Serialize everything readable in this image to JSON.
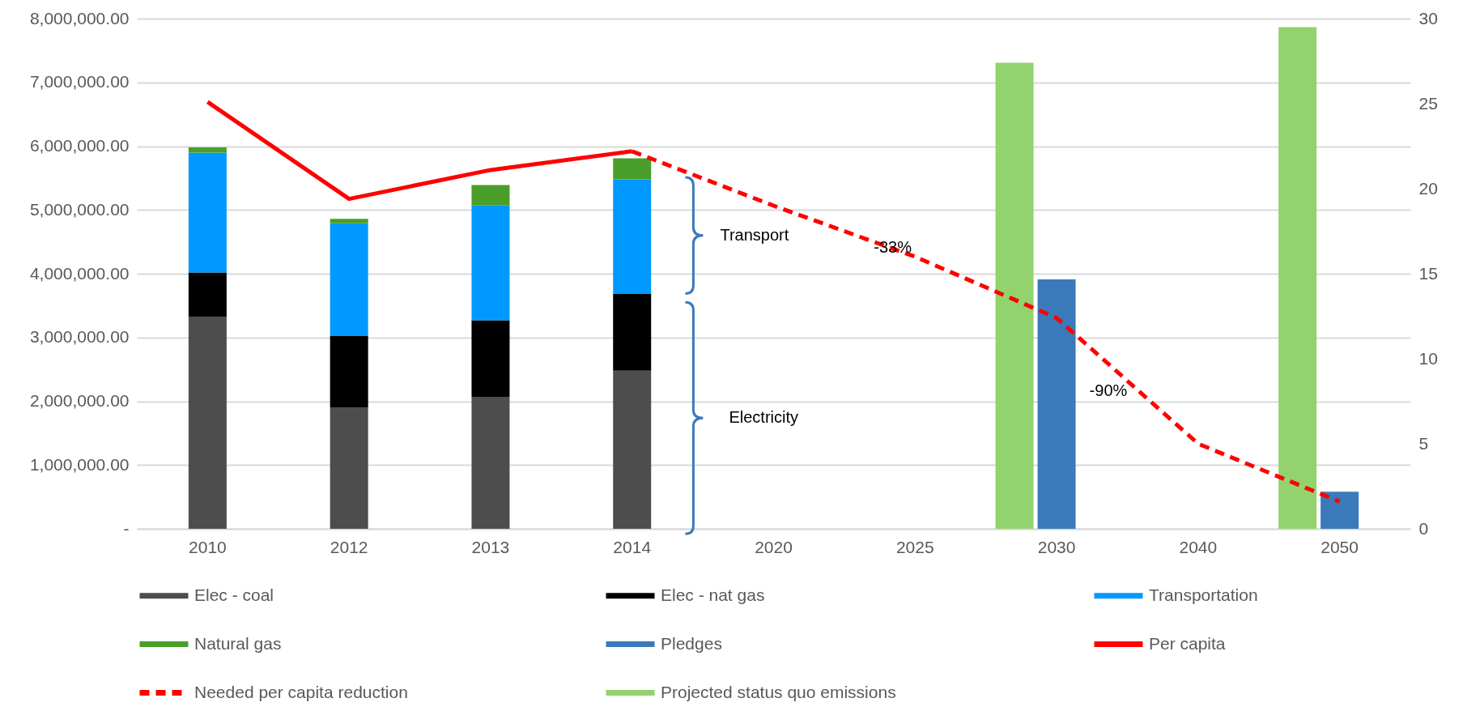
{
  "chart_data": {
    "type": "bar",
    "stacked": true,
    "categories": [
      "2010",
      "2012",
      "2013",
      "2014",
      "2020",
      "2025",
      "2030",
      "2040",
      "2050"
    ],
    "series": [
      {
        "name": "Elec - coal",
        "color": "#4d4d4d",
        "values": [
          3320000,
          1900000,
          2070000,
          2480000,
          null,
          null,
          null,
          null,
          null
        ]
      },
      {
        "name": "Elec - nat gas",
        "color": "#000000",
        "values": [
          700000,
          1130000,
          1200000,
          1210000,
          null,
          null,
          null,
          null,
          null
        ]
      },
      {
        "name": "Transportation",
        "color": "#0099ff",
        "values": [
          1880000,
          1760000,
          1800000,
          1790000,
          null,
          null,
          null,
          null,
          null
        ]
      },
      {
        "name": "Natural gas",
        "color": "#4a9e2a",
        "values": [
          80000,
          70000,
          320000,
          330000,
          null,
          null,
          null,
          null,
          null
        ]
      },
      {
        "name": "Pledges",
        "color": "#3a7aba",
        "values": [
          null,
          null,
          null,
          null,
          null,
          null,
          3910000,
          null,
          580000
        ]
      },
      {
        "name": "Per capita",
        "color": "#ff0000",
        "type": "line",
        "axis": "y2",
        "values": [
          25.1,
          19.4,
          21.1,
          22.2,
          null,
          null,
          null,
          null,
          null
        ]
      },
      {
        "name": "Needed per capita reduction",
        "color": "#ff0000",
        "type": "line",
        "axis": "y2",
        "line_style": "dashed",
        "values": [
          null,
          null,
          null,
          22.2,
          19.0,
          16.0,
          12.4,
          5.0,
          1.6
        ]
      },
      {
        "name": "Projected status quo emissions",
        "color": "#92d36e",
        "type": "bar",
        "axis": "y2",
        "values": [
          null,
          null,
          null,
          null,
          null,
          null,
          27.4,
          null,
          29.5
        ]
      }
    ],
    "ylim": [
      0,
      8000000
    ],
    "yticks": [
      {
        "value": 0,
        "label": "-"
      },
      {
        "value": 1000000,
        "label": "1,000,000.00"
      },
      {
        "value": 2000000,
        "label": "2,000,000.00"
      },
      {
        "value": 3000000,
        "label": "3,000,000.00"
      },
      {
        "value": 4000000,
        "label": "4,000,000.00"
      },
      {
        "value": 5000000,
        "label": "5,000,000.00"
      },
      {
        "value": 6000000,
        "label": "6,000,000.00"
      },
      {
        "value": 7000000,
        "label": "7,000,000.00"
      },
      {
        "value": 8000000,
        "label": "8,000,000.00"
      }
    ],
    "y2lim": [
      0,
      30
    ],
    "y2ticks": [
      0,
      5,
      10,
      15,
      20,
      25,
      30
    ],
    "grid": "y",
    "legend": "bottom",
    "marker": "none",
    "annotations": [
      "Transport",
      "Electricity",
      {
        "text": "-33%",
        "x": "2025",
        "y": 4310000
      },
      "-90%"
    ]
  }
}
